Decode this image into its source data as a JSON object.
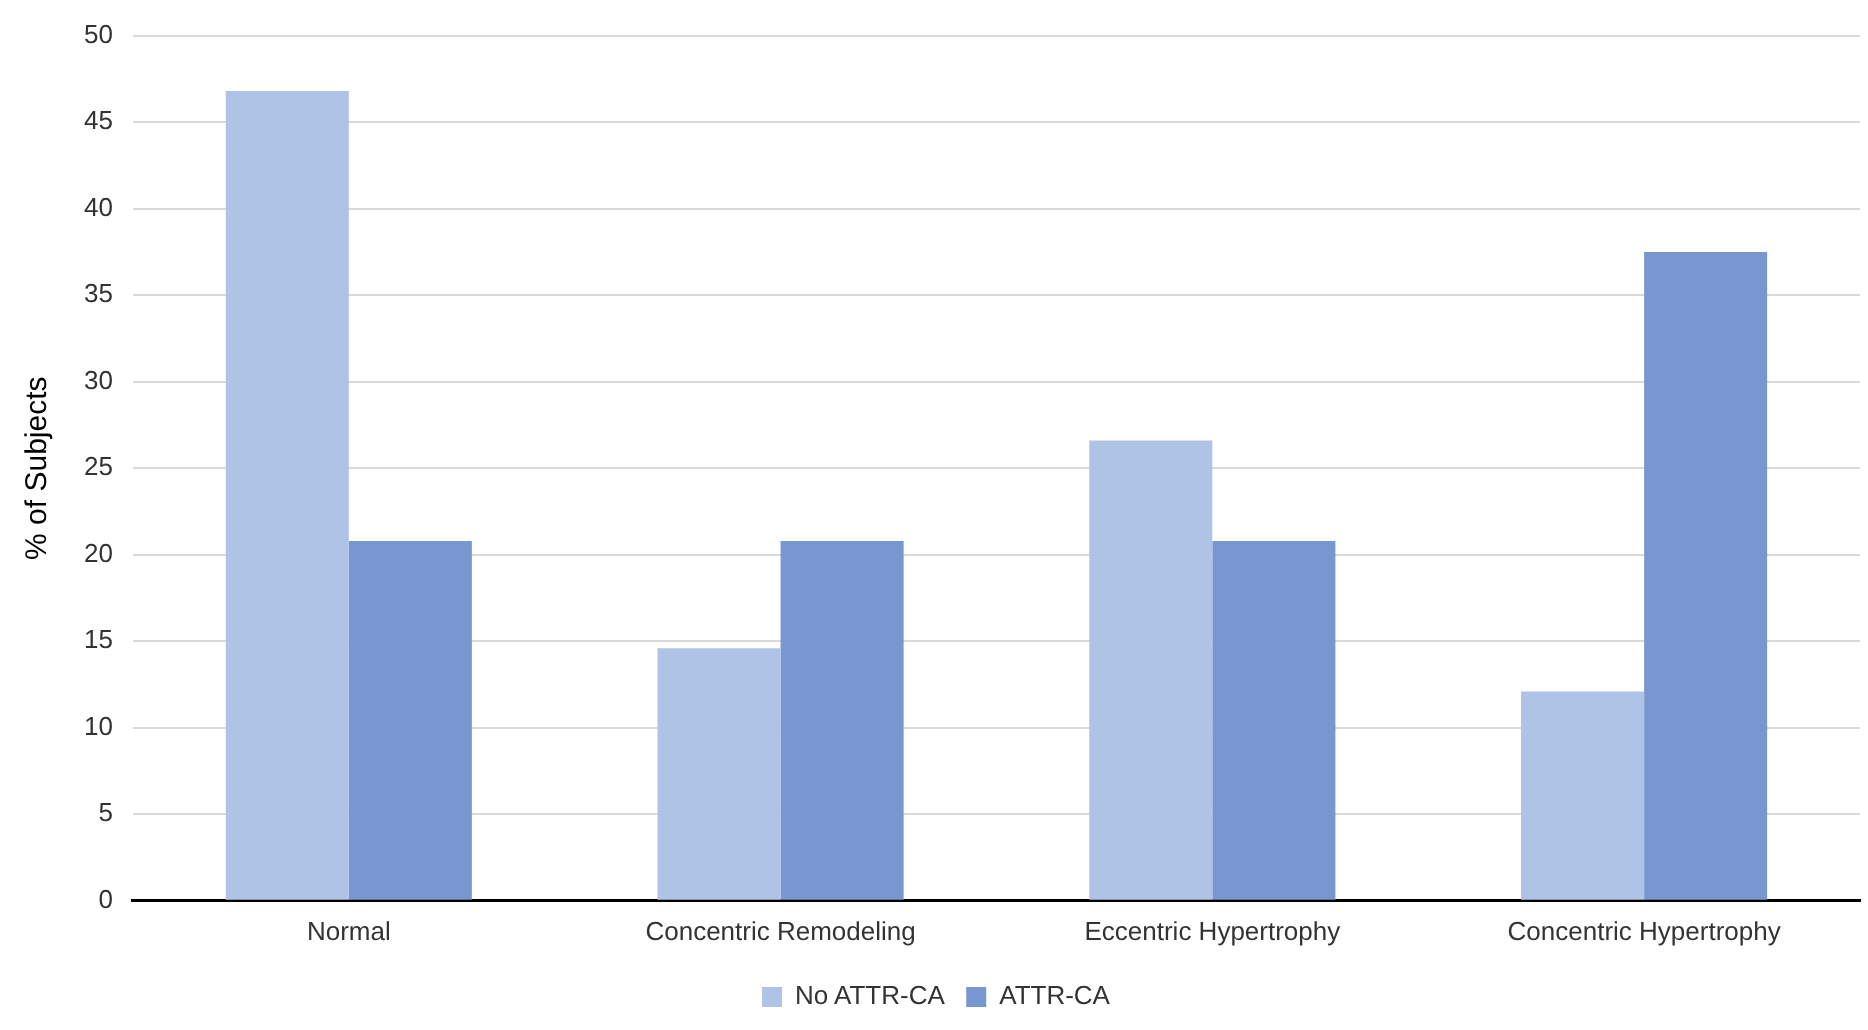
{
  "chart_data": {
    "type": "bar",
    "ylabel": "% of Subjects",
    "categories": [
      "Normal",
      "Concentric Remodeling",
      "Eccentric Hypertrophy",
      "Concentric Hypertrophy"
    ],
    "series": [
      {
        "name": "No ATTR-CA",
        "color": "#aec3e6",
        "values": [
          46.8,
          14.6,
          26.6,
          12.1
        ]
      },
      {
        "name": "ATTR-CA",
        "color": "#7896cf",
        "values": [
          20.8,
          20.8,
          20.8,
          37.5
        ]
      }
    ],
    "ylim": [
      0,
      50
    ],
    "yticks": [
      0,
      5,
      10,
      15,
      20,
      25,
      30,
      35,
      40,
      45,
      50
    ],
    "grid": "y",
    "legend": "bottom"
  }
}
